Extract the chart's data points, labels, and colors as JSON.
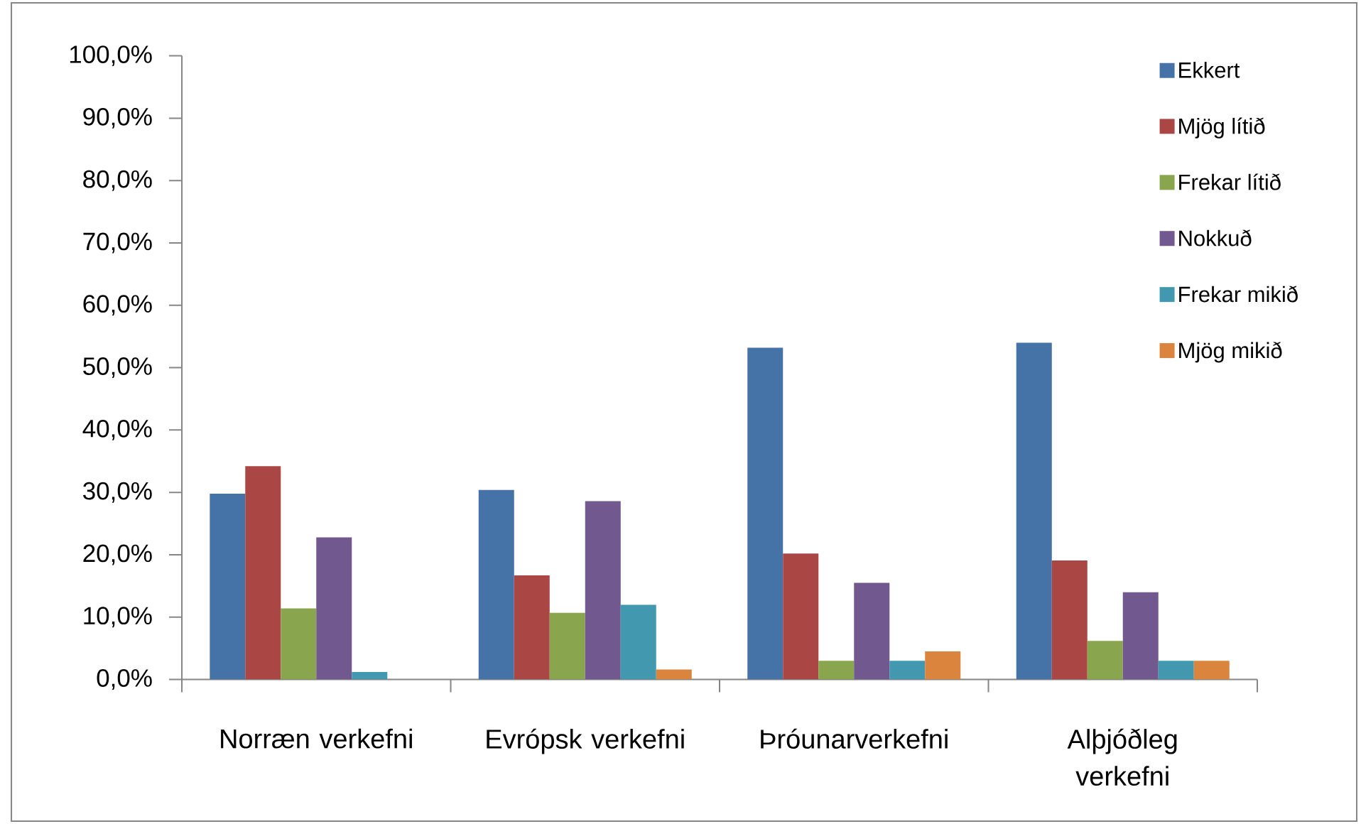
{
  "chart_data": {
    "type": "bar",
    "categories": [
      "Norræn verkefni",
      "Evrópsk verkefni",
      "Þróunarverkefni",
      "Alþjóðleg verkefni"
    ],
    "series": [
      {
        "name": "Ekkert",
        "color": "#4572a7",
        "values": [
          29.8,
          30.4,
          53.2,
          54.0
        ]
      },
      {
        "name": "Mjög lítið",
        "color": "#aa4643",
        "values": [
          34.2,
          16.7,
          20.2,
          19.1
        ]
      },
      {
        "name": "Frekar lítið",
        "color": "#89a54e",
        "values": [
          11.4,
          10.7,
          3.0,
          6.2
        ]
      },
      {
        "name": "Nokkuð",
        "color": "#71588f",
        "values": [
          22.8,
          28.6,
          15.5,
          14.0
        ]
      },
      {
        "name": "Frekar mikið",
        "color": "#4198af",
        "values": [
          1.2,
          12.0,
          3.0,
          3.0
        ]
      },
      {
        "name": "Mjög mikið",
        "color": "#db843d",
        "values": [
          null,
          1.6,
          4.5,
          3.0
        ]
      }
    ],
    "ylim": [
      0,
      100
    ],
    "yticks": [
      {
        "value": 0,
        "label": "0,0%"
      },
      {
        "value": 10,
        "label": "10,0%"
      },
      {
        "value": 20,
        "label": "20,0%"
      },
      {
        "value": 30,
        "label": "30,0%"
      },
      {
        "value": 40,
        "label": "40,0%"
      },
      {
        "value": 50,
        "label": "50,0%"
      },
      {
        "value": 60,
        "label": "60,0%"
      },
      {
        "value": 70,
        "label": "70,0%"
      },
      {
        "value": 80,
        "label": "80,0%"
      },
      {
        "value": 90,
        "label": "90,0%"
      },
      {
        "value": 100,
        "label": "100,0%"
      }
    ],
    "legend": "top right"
  }
}
